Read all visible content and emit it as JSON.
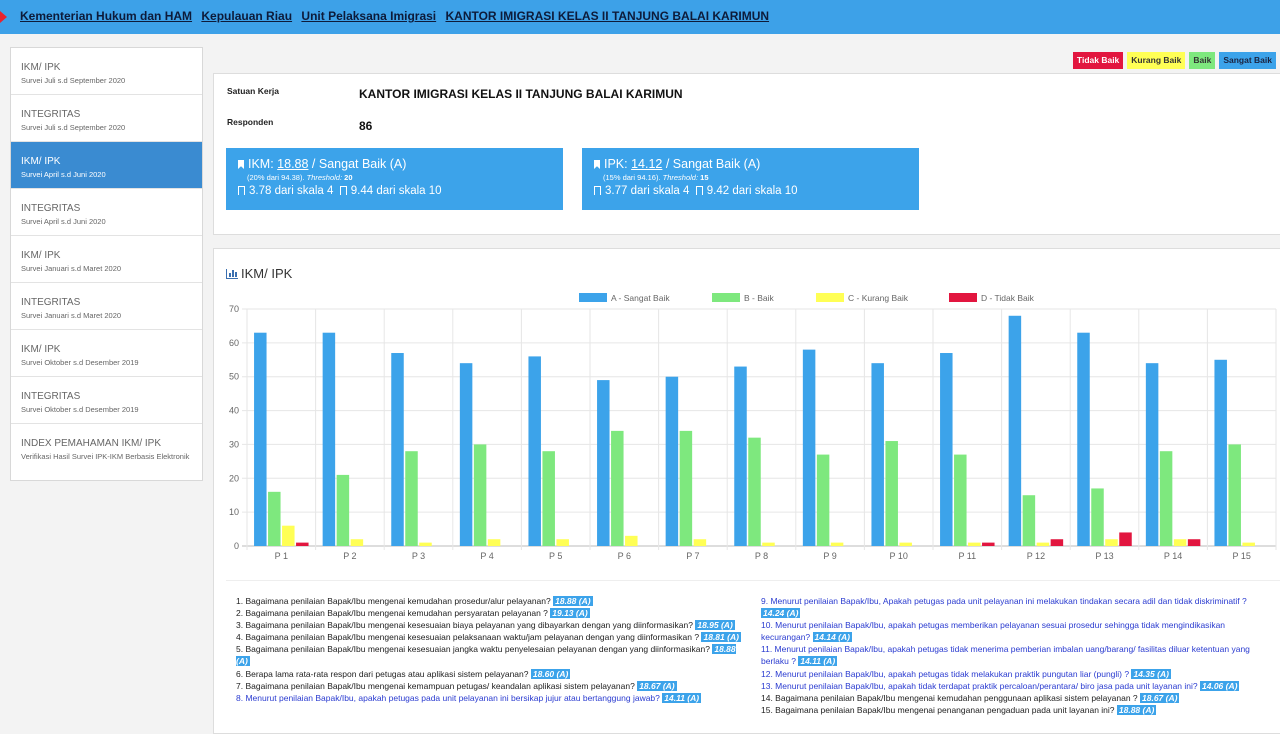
{
  "breadcrumb": [
    "Kementerian Hukum dan HAM",
    "Kepulauan Riau",
    "Unit Pelaksana Imigrasi",
    "KANTOR IMIGRASI KELAS II TANJUNG BALAI KARIMUN"
  ],
  "sidebar": {
    "items": [
      {
        "title": "IKM/ IPK",
        "sub": "Survei Juli s.d September 2020",
        "active": false
      },
      {
        "title": "INTEGRITAS",
        "sub": "Survei Juli s.d September 2020",
        "active": false
      },
      {
        "title": "IKM/ IPK",
        "sub": "Survei April s.d Juni 2020",
        "active": true
      },
      {
        "title": "INTEGRITAS",
        "sub": "Survei April s.d Juni 2020",
        "active": false
      },
      {
        "title": "IKM/ IPK",
        "sub": "Survei Januari s.d Maret 2020",
        "active": false
      },
      {
        "title": "INTEGRITAS",
        "sub": "Survei Januari s.d Maret 2020",
        "active": false
      },
      {
        "title": "IKM/ IPK",
        "sub": "Survei Oktober s.d Desember 2019",
        "active": false
      },
      {
        "title": "INTEGRITAS",
        "sub": "Survei Oktober s.d Desember 2019",
        "active": false
      },
      {
        "title": "INDEX PEMAHAMAN IKM/ IPK",
        "sub": "Verifikasi Hasil Survei IPK-IKM Berbasis Elektronik",
        "active": false
      }
    ]
  },
  "legend_badges": {
    "tidak_baik": "Tidak Baik",
    "kurang_baik": "Kurang Baik",
    "baik": "Baik",
    "sangat_baik": "Sangat Baik"
  },
  "info": {
    "satuan_kerja_label": "Satuan Kerja",
    "satuan_kerja_value": "KANTOR IMIGRASI KELAS II TANJUNG BALAI KARIMUN",
    "responden_label": "Responden",
    "responden_value": "86"
  },
  "ikm_card": {
    "prefix": "IKM: ",
    "score": "18.88",
    "suffix": " / Sangat Baik (A)",
    "detail": "(20% dari 94.38). ",
    "threshold_label": "Threshold:",
    "threshold_value": " 20",
    "scale4": "3.78 dari skala 4",
    "scale10": "9.44 dari skala 10"
  },
  "ipk_card": {
    "prefix": "IPK: ",
    "score": "14.12",
    "suffix": " / Sangat Baik (A)",
    "detail": "(15% dari 94.16). ",
    "threshold_label": "Threshold:",
    "threshold_value": " 15",
    "scale4": "3.77 dari skala 4",
    "scale10": "9.42 dari skala 10"
  },
  "chart_section_title": "IKM/ IPK",
  "colors": {
    "a": "#3ca3ea",
    "b": "#7ee87e",
    "c": "#ffff55",
    "d": "#e2163f"
  },
  "chart_data": {
    "type": "bar",
    "categories": [
      "P 1",
      "P 2",
      "P 3",
      "P 4",
      "P 5",
      "P 6",
      "P 7",
      "P 8",
      "P 9",
      "P 10",
      "P 11",
      "P 12",
      "P 13",
      "P 14",
      "P 15"
    ],
    "series": [
      {
        "name": "A - Sangat Baik",
        "values": [
          63,
          63,
          57,
          54,
          56,
          49,
          50,
          53,
          58,
          54,
          57,
          68,
          63,
          54,
          55
        ]
      },
      {
        "name": "B - Baik",
        "values": [
          16,
          21,
          28,
          30,
          28,
          34,
          34,
          32,
          27,
          31,
          27,
          15,
          17,
          28,
          30
        ]
      },
      {
        "name": "C - Kurang Baik",
        "values": [
          6,
          2,
          1,
          2,
          2,
          3,
          2,
          1,
          1,
          1,
          1,
          1,
          2,
          2,
          1
        ]
      },
      {
        "name": "D - Tidak Baik",
        "values": [
          1,
          0,
          0,
          0,
          0,
          0,
          0,
          0,
          0,
          0,
          1,
          2,
          4,
          2,
          0
        ]
      }
    ],
    "ylim": [
      0,
      70
    ],
    "yticks": [
      0,
      10,
      20,
      30,
      40,
      50,
      60,
      70
    ],
    "legend": "top-center",
    "grid": true
  },
  "questions_left": [
    {
      "text": "1. Bagaimana penilaian Bapak/Ibu mengenai kemudahan prosedur/alur pelayanan?",
      "score": "18.88 (A)",
      "blue": false
    },
    {
      "text": "2. Bagaimana penilaian Bapak/Ibu mengenai kemudahan persyaratan pelayanan ?",
      "score": "19.13 (A)",
      "blue": false
    },
    {
      "text": "3. Bagaimana penilaian Bapak/Ibu mengenai kesesuaian biaya pelayanan yang dibayarkan dengan yang diinformasikan?",
      "score": "18.95 (A)",
      "blue": false
    },
    {
      "text": "4. Bagaimana penilaian Bapak/Ibu mengenai kesesuaian pelaksanaan waktu/jam pelayanan dengan yang diinformasikan ?",
      "score": "18.81 (A)",
      "blue": false
    },
    {
      "text": "5. Bagaimana penilaian Bapak/Ibu mengenai kesesuaian jangka waktu penyelesaian pelayanan dengan yang diinformasikan?",
      "score": "18.88 (A)",
      "blue": false
    },
    {
      "text": "6. Berapa lama rata-rata respon dari petugas atau aplikasi sistem pelayanan?",
      "score": "18.60 (A)",
      "blue": false
    },
    {
      "text": "7. Bagaimana penilaian Bapak/Ibu mengenai kemampuan petugas/ keandalan aplikasi sistem pelayanan?",
      "score": "18.67 (A)",
      "blue": false
    },
    {
      "text": "8. Menurut penilaian Bapak/Ibu, apakah petugas pada unit pelayanan ini bersikap jujur atau bertanggung jawab?",
      "score": "14.11 (A)",
      "blue": true
    }
  ],
  "questions_right": [
    {
      "text": "9. Menurut penilaian Bapak/Ibu, Apakah petugas pada unit pelayanan ini melakukan tindakan secara adil dan tidak diskriminatif ?",
      "score": "14.24 (A)",
      "blue": true
    },
    {
      "text": "10. Menurut penilaian Bapak/Ibu, apakah petugas memberikan pelayanan sesuai prosedur sehingga tidak mengindikasikan kecurangan?",
      "score": "14.14 (A)",
      "blue": true
    },
    {
      "text": "11. Menurut penilaian Bapak/Ibu, apakah petugas tidak menerima pemberian imbalan uang/barang/ fasilitas diluar ketentuan yang berlaku ?",
      "score": "14.11 (A)",
      "blue": true
    },
    {
      "text": "12. Menurut penilaian Bapak/Ibu, apakah petugas tidak melakukan praktik pungutan liar (pungli) ?",
      "score": "14.35 (A)",
      "blue": true
    },
    {
      "text": "13. Menurut penilaian Bapak/Ibu, apakah tidak terdapat praktik percaloan/perantara/ biro jasa pada unit layanan ini?",
      "score": "14.06 (A)",
      "blue": true
    },
    {
      "text": "14. Bagaimana penilaian Bapak/Ibu mengenai kemudahan penggunaan aplikasi sistem pelayanan ?",
      "score": "18.67 (A)",
      "blue": false
    },
    {
      "text": "15. Bagaimana penilaian Bapak/Ibu mengenai penanganan pengaduan pada unit layanan ini?",
      "score": "18.88 (A)",
      "blue": false
    }
  ]
}
